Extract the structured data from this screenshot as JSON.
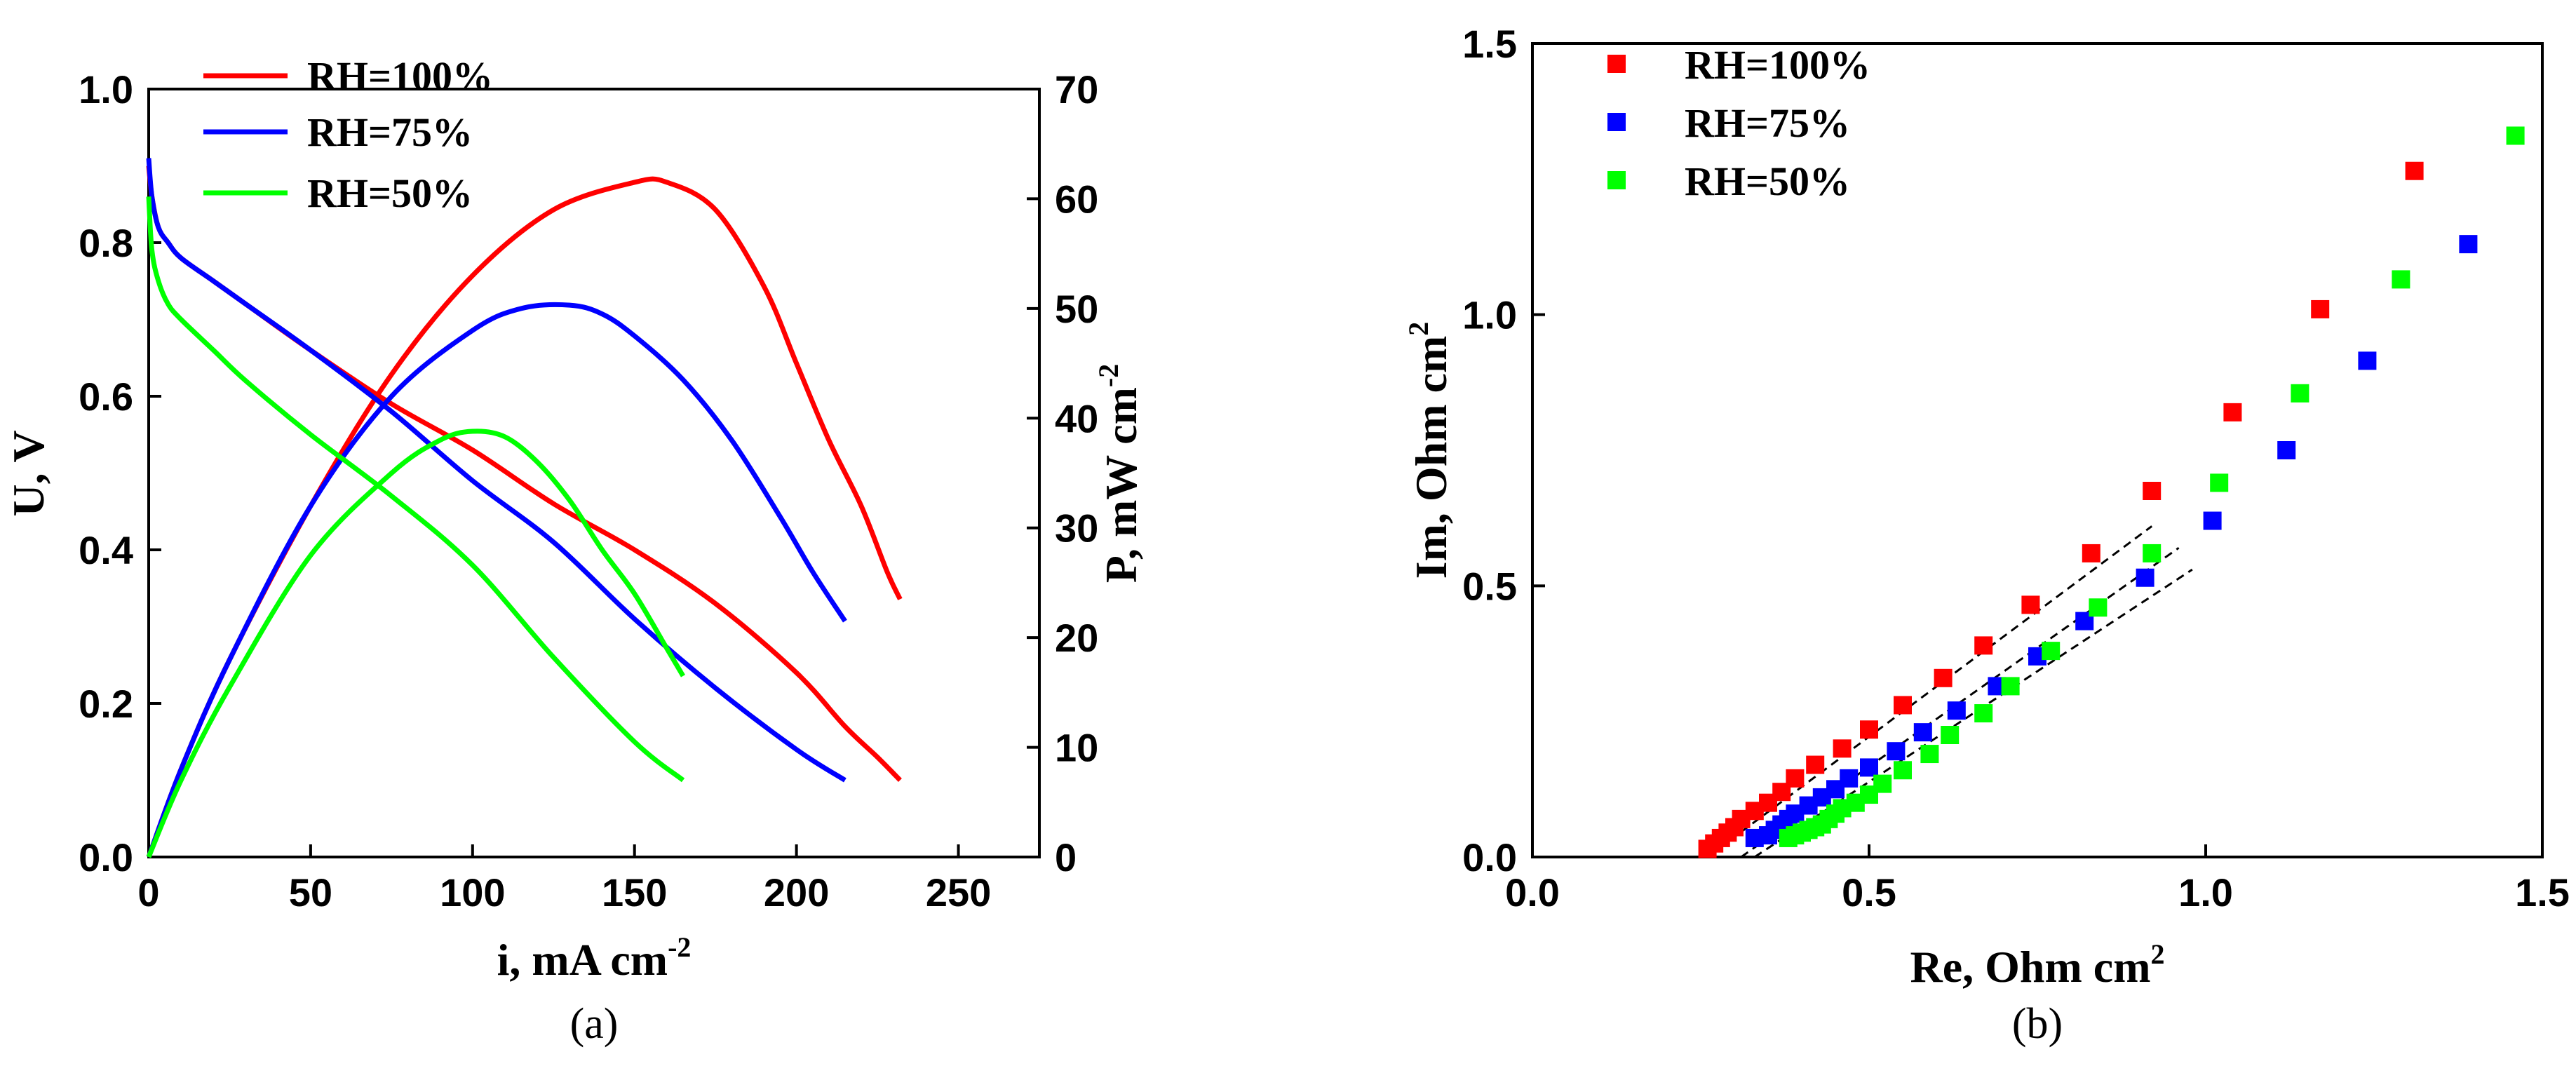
{
  "colors": {
    "rh100": "#ff0000",
    "rh75": "#0000ff",
    "rh50": "#00ff00",
    "fit": "#000000"
  },
  "chart_data": [
    {
      "panel": "(a)",
      "type": "line",
      "xlabel": "i, mA cm",
      "xlabel_sup": "-2",
      "ylabel": "U, V",
      "y2label": "P, mW cm",
      "y2label_sup": "-2",
      "xlim": [
        0,
        275
      ],
      "ylim": [
        0,
        1.0
      ],
      "y2lim": [
        0,
        70
      ],
      "xticks": [
        0,
        50,
        100,
        150,
        200,
        250
      ],
      "yticks": [
        0.0,
        0.2,
        0.4,
        0.6,
        0.8,
        1.0
      ],
      "y2ticks": [
        0,
        10,
        20,
        30,
        40,
        50,
        60,
        70
      ],
      "xtick_labels": [
        "0",
        "50",
        "100",
        "150",
        "200",
        "250"
      ],
      "ytick_labels": [
        "0.0",
        "0.2",
        "0.4",
        "0.6",
        "0.8",
        "1.0"
      ],
      "y2tick_labels": [
        "0",
        "10",
        "20",
        "30",
        "40",
        "50",
        "60",
        "70"
      ],
      "legend": [
        "RH=100%",
        "RH=75%",
        "RH=50%"
      ],
      "legend_position": "top-left",
      "series": [
        {
          "name": "RH=100%",
          "color_key": "rh100",
          "voltage": {
            "x": [
              0,
              1,
              3,
              6,
              10,
              20,
              30,
              50,
              75,
              100,
              125,
              150,
              175,
              200,
              215,
              225,
              232
            ],
            "y": [
              0.9,
              0.86,
              0.82,
              0.8,
              0.78,
              0.75,
              0.72,
              0.66,
              0.59,
              0.53,
              0.46,
              0.4,
              0.33,
              0.24,
              0.17,
              0.13,
              0.1
            ]
          },
          "power": {
            "x": [
              0,
              10,
              25,
              50,
              75,
              100,
              125,
              150,
              160,
              175,
              190,
              200,
              210,
              220,
              228,
              232
            ],
            "y": [
              0,
              8,
              18,
              32,
              44,
              53,
              59,
              61.5,
              61.5,
              59,
              52,
              45,
              38,
              32,
              26,
              23.5
            ]
          }
        },
        {
          "name": "RH=75%",
          "color_key": "rh75",
          "voltage": {
            "x": [
              0,
              1,
              3,
              6,
              10,
              20,
              30,
              50,
              75,
              100,
              125,
              150,
              175,
              200,
              215
            ],
            "y": [
              0.91,
              0.86,
              0.82,
              0.8,
              0.78,
              0.75,
              0.72,
              0.66,
              0.58,
              0.49,
              0.41,
              0.31,
              0.22,
              0.14,
              0.1
            ]
          },
          "power": {
            "x": [
              0,
              10,
              25,
              50,
              75,
              100,
              115,
              130,
              140,
              150,
              165,
              180,
              195,
              205,
              215
            ],
            "y": [
              0,
              8,
              18,
              32,
              42,
              48,
              50,
              50.3,
              49.5,
              47.5,
              43.5,
              38,
              31,
              26,
              21.5
            ]
          }
        },
        {
          "name": "RH=50%",
          "color_key": "rh50",
          "voltage": {
            "x": [
              0,
              1,
              3,
              6,
              10,
              20,
              30,
              50,
              75,
              100,
              125,
              150,
              165
            ],
            "y": [
              0.86,
              0.79,
              0.75,
              0.72,
              0.7,
              0.66,
              0.62,
              0.55,
              0.47,
              0.38,
              0.26,
              0.15,
              0.1
            ]
          },
          "power": {
            "x": [
              0,
              10,
              25,
              50,
              75,
              90,
              100,
              110,
              120,
              130,
              140,
              150,
              160,
              165
            ],
            "y": [
              0,
              7,
              15.5,
              27.5,
              35,
              38,
              38.8,
              38.3,
              36,
              32.5,
              28,
              24,
              19,
              16.5
            ]
          }
        }
      ]
    },
    {
      "panel": "(b)",
      "type": "scatter",
      "xlabel": "Re, Ohm cm",
      "xlabel_sup": "2",
      "ylabel": "Im, Ohm cm",
      "ylabel_sup": "2",
      "xlim": [
        0,
        1.5
      ],
      "ylim": [
        0,
        1.5
      ],
      "xticks": [
        0.0,
        0.5,
        1.0,
        1.5
      ],
      "yticks": [
        0.0,
        0.5,
        1.0,
        1.5
      ],
      "xtick_labels": [
        "0.0",
        "0.5",
        "1.0",
        "1.5"
      ],
      "ytick_labels": [
        "0.0",
        "0.5",
        "1.0",
        "1.5"
      ],
      "legend": [
        "RH=100%",
        "RH=75%",
        "RH=50%"
      ],
      "legend_position": "top-left",
      "series": [
        {
          "name": "RH=100%",
          "color_key": "rh100",
          "x": [
            0.26,
            0.27,
            0.28,
            0.29,
            0.3,
            0.31,
            0.33,
            0.35,
            0.37,
            0.39,
            0.42,
            0.46,
            0.5,
            0.55,
            0.61,
            0.67,
            0.74,
            0.83,
            0.92,
            1.04,
            1.17,
            1.31
          ],
          "y": [
            0.015,
            0.025,
            0.035,
            0.045,
            0.055,
            0.07,
            0.085,
            0.1,
            0.12,
            0.145,
            0.17,
            0.2,
            0.235,
            0.28,
            0.33,
            0.39,
            0.465,
            0.56,
            0.675,
            0.82,
            1.01,
            1.265
          ]
        },
        {
          "name": "RH=75%",
          "color_key": "rh75",
          "x": [
            0.33,
            0.35,
            0.36,
            0.37,
            0.38,
            0.39,
            0.41,
            0.43,
            0.45,
            0.47,
            0.5,
            0.54,
            0.58,
            0.63,
            0.69,
            0.75,
            0.82,
            0.91,
            1.01,
            1.12,
            1.24,
            1.39
          ],
          "y": [
            0.035,
            0.04,
            0.05,
            0.06,
            0.07,
            0.08,
            0.095,
            0.11,
            0.125,
            0.145,
            0.165,
            0.195,
            0.23,
            0.27,
            0.315,
            0.37,
            0.435,
            0.515,
            0.62,
            0.75,
            0.915,
            1.13
          ]
        },
        {
          "name": "RH=50%",
          "color_key": "rh50",
          "x": [
            0.38,
            0.39,
            0.4,
            0.41,
            0.42,
            0.43,
            0.44,
            0.45,
            0.46,
            0.48,
            0.5,
            0.52,
            0.55,
            0.59,
            0.62,
            0.67,
            0.71,
            0.77,
            0.84,
            0.92,
            1.02,
            1.14,
            1.29,
            1.46
          ],
          "y": [
            0.035,
            0.04,
            0.045,
            0.05,
            0.055,
            0.06,
            0.07,
            0.08,
            0.09,
            0.1,
            0.115,
            0.135,
            0.16,
            0.19,
            0.225,
            0.265,
            0.315,
            0.38,
            0.46,
            0.56,
            0.69,
            0.855,
            1.065,
            1.33
          ]
        }
      ],
      "fit_lines": [
        {
          "name": "fit RH=100%",
          "x": [
            0.26,
            0.92
          ],
          "y": [
            0.0,
            0.61
          ]
        },
        {
          "name": "fit RH=75%",
          "x": [
            0.31,
            0.96
          ],
          "y": [
            0.0,
            0.57
          ]
        },
        {
          "name": "fit RH=50%",
          "x": [
            0.33,
            0.98
          ],
          "y": [
            0.0,
            0.53
          ]
        }
      ]
    }
  ]
}
